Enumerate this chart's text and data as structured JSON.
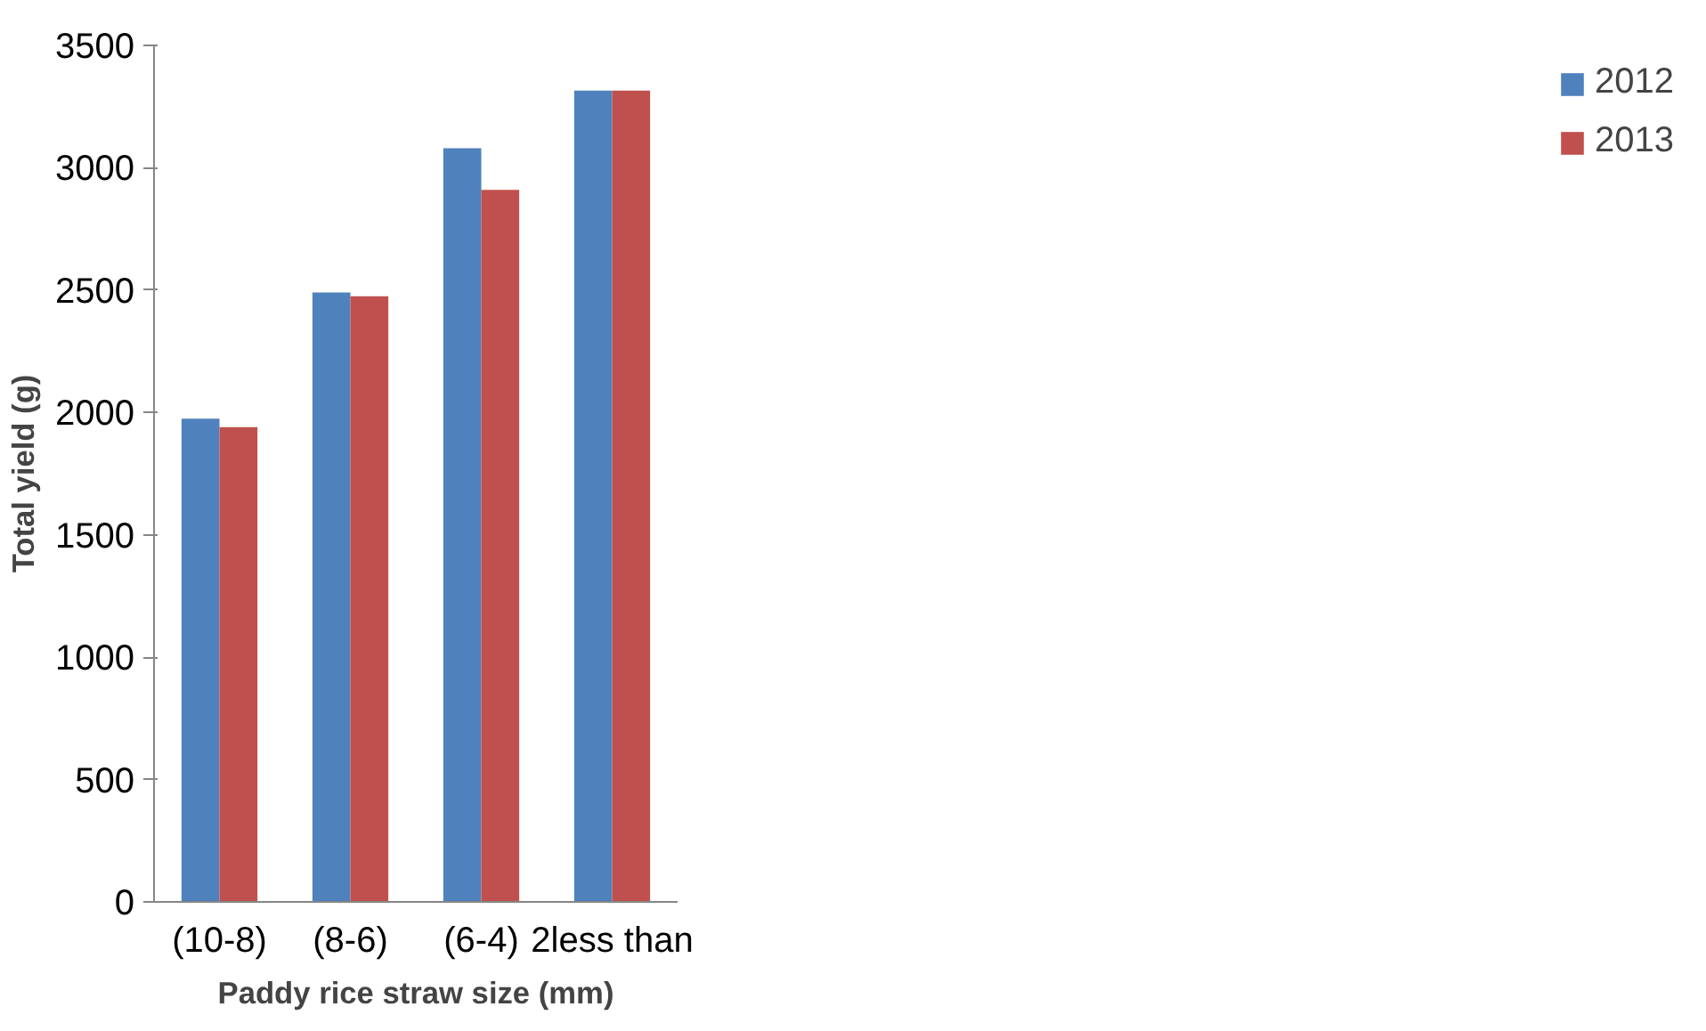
{
  "chart_data": {
    "type": "bar",
    "xlabel": "Paddy rice straw size (mm)",
    "ylabel": "Total yield (g)",
    "categories": [
      "(10-8)",
      "(8-6)",
      "(6-4)",
      "2less than"
    ],
    "series": [
      {
        "name": "2012",
        "color": "#4f81bd",
        "values": [
          1975,
          2490,
          3080,
          3315
        ]
      },
      {
        "name": "2013",
        "color": "#c0504d",
        "values": [
          1940,
          2475,
          2910,
          3315
        ]
      }
    ],
    "ylim": [
      0,
      3500
    ],
    "yticks": [
      0,
      500,
      1000,
      1500,
      2000,
      2500,
      3000,
      3500
    ],
    "grid": false,
    "legend": "right"
  }
}
